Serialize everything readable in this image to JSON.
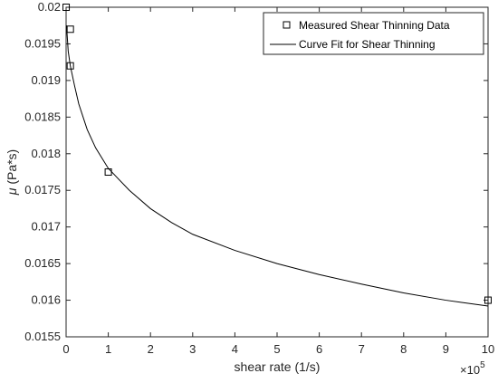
{
  "chart_data": {
    "type": "scatter",
    "title": "",
    "xlabel": "shear rate (1/s)",
    "ylabel": "(Pa*s)",
    "ylabel_symbol": "μ",
    "x_exponent_base": "×10",
    "x_exponent_power": "5",
    "xlim": [
      0,
      10
    ],
    "ylim": [
      0.0155,
      0.02
    ],
    "xticks": [
      0,
      1,
      2,
      3,
      4,
      5,
      6,
      7,
      8,
      9,
      10
    ],
    "yticks": [
      0.0155,
      0.016,
      0.0165,
      0.017,
      0.0175,
      0.018,
      0.0185,
      0.019,
      0.0195,
      0.02
    ],
    "ytick_labels": [
      "0.0155",
      "0.016",
      "0.0165",
      "0.017",
      "0.0175",
      "0.018",
      "0.0185",
      "0.019",
      "0.0195",
      "0.02"
    ],
    "grid": false,
    "legend_position": "top-right",
    "series": [
      {
        "name": "Measured Shear Thinning Data",
        "kind": "markers",
        "marker": "square",
        "color": "#000000",
        "x": [
          0.001,
          0.1,
          0.1,
          1.0,
          10.0
        ],
        "y": [
          0.02,
          0.0197,
          0.0192,
          0.01775,
          0.016
        ]
      },
      {
        "name": "Curve Fit for Shear Thinning",
        "kind": "line",
        "color": "#000000",
        "x": [
          0.01,
          0.05,
          0.1,
          0.2,
          0.3,
          0.5,
          0.7,
          1.0,
          1.5,
          2.0,
          2.5,
          3.0,
          4.0,
          5.0,
          6.0,
          7.0,
          8.0,
          9.0,
          10.0
        ],
        "y": [
          0.01975,
          0.0194,
          0.0192,
          0.01893,
          0.01868,
          0.01833,
          0.01808,
          0.0178,
          0.0175,
          0.01725,
          0.01706,
          0.0169,
          0.01668,
          0.0165,
          0.01635,
          0.01622,
          0.0161,
          0.016,
          0.01592
        ]
      }
    ]
  }
}
